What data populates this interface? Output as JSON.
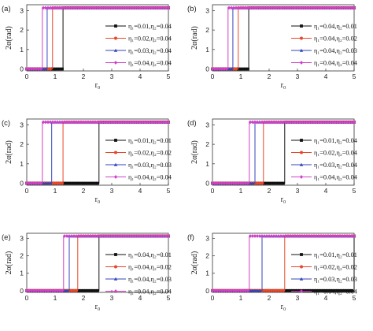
{
  "chart_data": [
    {
      "panel": "(a)",
      "type": "line",
      "xlabel": "r₀",
      "ylabel": "2α(rad)",
      "xlim": [
        0,
        5
      ],
      "ylim": [
        -0.1,
        3.3
      ],
      "xticks": [
        "0",
        "1",
        "2",
        "3",
        "4",
        "5"
      ],
      "yticks": [
        "0",
        "1",
        "2",
        "3"
      ],
      "legend_position": "right",
      "series": [
        {
          "name": "η₁=0.01,η₂=0.04",
          "color": "#111111",
          "marker": "square",
          "step_at": 1.28,
          "y_low": 0.0,
          "y_high": 3.14
        },
        {
          "name": "η₁=0.02,η₂=0.04",
          "color": "#e8472a",
          "marker": "circle",
          "step_at": 0.91,
          "y_low": 0.0,
          "y_high": 3.14
        },
        {
          "name": "η₁=0.03,η₂=0.04",
          "color": "#3344bb",
          "marker": "triangle",
          "step_at": 0.72,
          "y_low": 0.0,
          "y_high": 3.14
        },
        {
          "name": "η₁=0.04,η₂=0.04",
          "color": "#d040c8",
          "marker": "diamond",
          "step_at": 0.55,
          "y_low": 0.0,
          "y_high": 3.14
        }
      ]
    },
    {
      "panel": "(b)",
      "type": "line",
      "xlabel": "r₀",
      "ylabel": "2α(rad)",
      "xlim": [
        0,
        5
      ],
      "ylim": [
        -0.1,
        3.3
      ],
      "xticks": [
        "0",
        "1",
        "2",
        "3",
        "4",
        "5"
      ],
      "yticks": [
        "0",
        "1",
        "2",
        "3"
      ],
      "legend_position": "right",
      "series": [
        {
          "name": "η₁=0.04,η₂=0.01",
          "color": "#111111",
          "marker": "square",
          "step_at": 1.28,
          "y_low": 0.0,
          "y_high": 3.14
        },
        {
          "name": "η₁=0.04,η₂=0.02",
          "color": "#e8472a",
          "marker": "circle",
          "step_at": 0.91,
          "y_low": 0.0,
          "y_high": 3.14
        },
        {
          "name": "η₁=0.04,η₂=0.03",
          "color": "#3344bb",
          "marker": "triangle",
          "step_at": 0.72,
          "y_low": 0.0,
          "y_high": 3.14
        },
        {
          "name": "η₁=0.04,η₂=0.04",
          "color": "#d040c8",
          "marker": "diamond",
          "step_at": 0.55,
          "y_low": 0.0,
          "y_high": 3.14
        }
      ]
    },
    {
      "panel": "(c)",
      "type": "line",
      "xlabel": "r₀",
      "ylabel": "2α(rad)",
      "xlim": [
        0,
        5
      ],
      "ylim": [
        -0.1,
        3.3
      ],
      "xticks": [
        "0",
        "1",
        "2",
        "3",
        "4",
        "5"
      ],
      "yticks": [
        "0",
        "1",
        "2",
        "3"
      ],
      "legend_position": "right",
      "series": [
        {
          "name": "η₁=0.01,η₂=0.01",
          "color": "#111111",
          "marker": "square",
          "step_at": 2.55,
          "y_low": 0.0,
          "y_high": 3.14
        },
        {
          "name": "η₁=0.02,η₂=0.02",
          "color": "#e8472a",
          "marker": "circle",
          "step_at": 1.28,
          "y_low": 0.0,
          "y_high": 3.14
        },
        {
          "name": "η₁=0.03,η₂=0.03",
          "color": "#3344bb",
          "marker": "triangle",
          "step_at": 0.88,
          "y_low": 0.0,
          "y_high": 3.14
        },
        {
          "name": "η₁=0.04,η₂=0.04",
          "color": "#d040c8",
          "marker": "diamond",
          "step_at": 0.55,
          "y_low": 0.0,
          "y_high": 3.14
        }
      ]
    },
    {
      "panel": "(d)",
      "type": "line",
      "xlabel": "r₀",
      "ylabel": "2α(rad)",
      "xlim": [
        0,
        5
      ],
      "ylim": [
        -0.1,
        3.3
      ],
      "xticks": [
        "0",
        "1",
        "2",
        "3",
        "4",
        "5"
      ],
      "yticks": [
        "0",
        "1",
        "2",
        "3"
      ],
      "legend_position": "right",
      "series": [
        {
          "name": "η₁=0.01,η₂=0.04",
          "color": "#111111",
          "marker": "square",
          "step_at": 2.55,
          "y_low": 0.0,
          "y_high": 3.14
        },
        {
          "name": "η₁=0.02,η₂=0.04",
          "color": "#e8472a",
          "marker": "circle",
          "step_at": 1.8,
          "y_low": 0.0,
          "y_high": 3.14
        },
        {
          "name": "η₁=0.03,η₂=0.04",
          "color": "#3344bb",
          "marker": "triangle",
          "step_at": 1.5,
          "y_low": 0.0,
          "y_high": 3.14
        },
        {
          "name": "η₁=0.04,η₂=0.04",
          "color": "#d040c8",
          "marker": "diamond",
          "step_at": 1.3,
          "y_low": 0.0,
          "y_high": 3.14
        }
      ]
    },
    {
      "panel": "(e)",
      "type": "line",
      "xlabel": "r₀",
      "ylabel": "2α(rad)",
      "xlim": [
        0,
        5
      ],
      "ylim": [
        -0.1,
        3.3
      ],
      "xticks": [
        "0",
        "1",
        "2",
        "3",
        "4",
        "5"
      ],
      "yticks": [
        "0",
        "1",
        "2",
        "3"
      ],
      "legend_position": "right",
      "series": [
        {
          "name": "η₁=0.04,η₂=0.01",
          "color": "#111111",
          "marker": "square",
          "step_at": 2.55,
          "y_low": 0.0,
          "y_high": 3.14
        },
        {
          "name": "η₁=0.04,η₂=0.02",
          "color": "#e8472a",
          "marker": "circle",
          "step_at": 1.8,
          "y_low": 0.0,
          "y_high": 3.14
        },
        {
          "name": "η₁=0.04,η₂=0.03",
          "color": "#3344bb",
          "marker": "triangle",
          "step_at": 1.5,
          "y_low": 0.0,
          "y_high": 3.14
        },
        {
          "name": "η₁=0.04,η₂=0.04",
          "color": "#d040c8",
          "marker": "diamond",
          "step_at": 1.3,
          "y_low": 0.0,
          "y_high": 3.14
        }
      ]
    },
    {
      "panel": "(f)",
      "type": "line",
      "xlabel": "r₀",
      "ylabel": "2α(rad)",
      "xlim": [
        0,
        5
      ],
      "ylim": [
        -0.1,
        3.3
      ],
      "xticks": [
        "0",
        "1",
        "2",
        "3",
        "4",
        "5"
      ],
      "yticks": [
        "0",
        "1",
        "2",
        "3"
      ],
      "legend_position": "right",
      "series": [
        {
          "name": "η₁=0.01,η₂=0.01",
          "color": "#111111",
          "marker": "square",
          "step_at": 5.0,
          "y_low": 0.0,
          "y_high": 3.14
        },
        {
          "name": "η₁=0.02,η₂=0.02",
          "color": "#e8472a",
          "marker": "circle",
          "step_at": 2.55,
          "y_low": 0.0,
          "y_high": 3.14
        },
        {
          "name": "η₁=0.03,η₂=0.03",
          "color": "#3344bb",
          "marker": "triangle",
          "step_at": 1.75,
          "y_low": 0.0,
          "y_high": 3.14
        },
        {
          "name": "η₁=0.04,η₂=0.04",
          "color": "#d040c8",
          "marker": "diamond",
          "step_at": 1.3,
          "y_low": 0.0,
          "y_high": 3.14
        }
      ]
    }
  ]
}
